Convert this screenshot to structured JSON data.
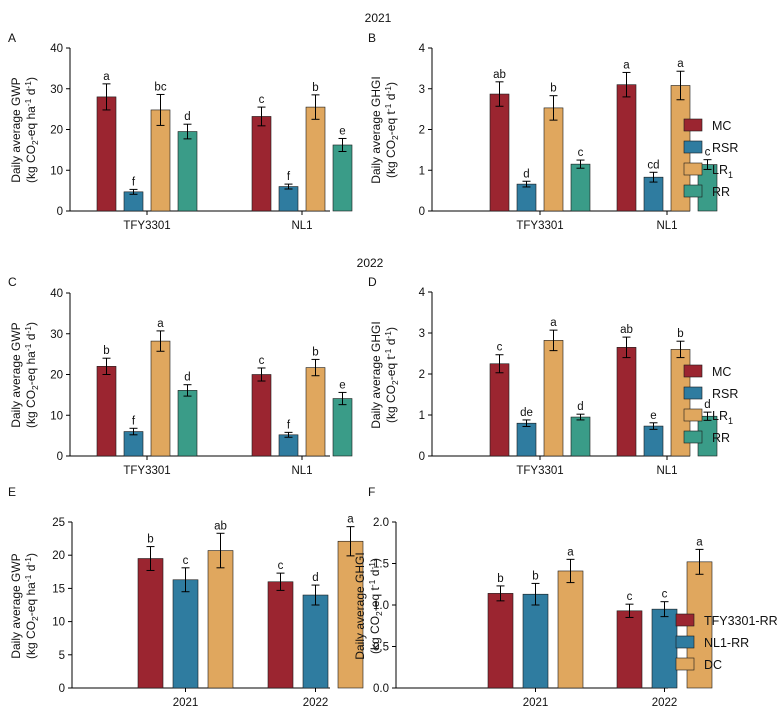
{
  "titles": {
    "year_2021": "2021",
    "year_2022": "2022"
  },
  "colors": {
    "MC": "#9b2530",
    "RSR": "#2f7ca0",
    "LR1": "#e0a75e",
    "RR": "#3a9c88"
  },
  "legend_top": [
    {
      "key": "MC",
      "label": "MC",
      "sub": ""
    },
    {
      "key": "RSR",
      "label": "RSR",
      "sub": ""
    },
    {
      "key": "LR1",
      "label": "LR",
      "sub": "1"
    },
    {
      "key": "RR",
      "label": "RR",
      "sub": ""
    }
  ],
  "legend_bottom": [
    {
      "key": "MC",
      "label": "TFY3301-RR",
      "sub": ""
    },
    {
      "key": "RSR",
      "label": "NL1-RR",
      "sub": ""
    },
    {
      "key": "LR1",
      "label": "DC",
      "sub": ""
    }
  ],
  "ylabels": {
    "gwp": {
      "l1": "Daily average GWP",
      "l2_a": "(kg CO",
      "l2_b": "2",
      "l2_c": "-eq ha",
      "l2_d": "-1",
      "l2_e": " d",
      "l2_f": "-1",
      "l2_g": ")"
    },
    "ghgi": {
      "l1": "Daily average GHGI",
      "l2_a": "(kg CO",
      "l2_b": "2",
      "l2_c": "-eq t",
      "l2_d": "-1",
      "l2_e": " d",
      "l2_f": "-1",
      "l2_g": ")"
    }
  },
  "chart_data": [
    {
      "panel": "A",
      "type": "bar",
      "title": "2021",
      "ylabel": "Daily average GWP (kg CO2-eq ha-1 d-1)",
      "ylim": [
        0,
        40
      ],
      "yticks": [
        0,
        10,
        20,
        30,
        40
      ],
      "categories": [
        "TFY3301",
        "NL1"
      ],
      "series": [
        {
          "name": "MC",
          "values": [
            28,
            23.2
          ],
          "err": [
            3.2,
            2.3
          ],
          "letters": [
            "a",
            "c"
          ]
        },
        {
          "name": "RSR",
          "values": [
            4.7,
            6
          ],
          "err": [
            0.6,
            0.6
          ],
          "letters": [
            "f",
            "f"
          ]
        },
        {
          "name": "LR1",
          "values": [
            24.8,
            25.5
          ],
          "err": [
            3.8,
            3.0
          ],
          "letters": [
            "bc",
            "b"
          ]
        },
        {
          "name": "RR",
          "values": [
            19.5,
            16.2
          ],
          "err": [
            1.8,
            1.6
          ],
          "letters": [
            "d",
            "e"
          ]
        }
      ]
    },
    {
      "panel": "B",
      "type": "bar",
      "title": "2021",
      "ylabel": "Daily average GHGI (kg CO2-eq t-1 d-1)",
      "ylim": [
        0,
        4
      ],
      "yticks": [
        0,
        1,
        2,
        3,
        4
      ],
      "categories": [
        "TFY3301",
        "NL1"
      ],
      "series": [
        {
          "name": "MC",
          "values": [
            2.87,
            3.1
          ],
          "err": [
            0.3,
            0.3
          ],
          "letters": [
            "ab",
            "a"
          ]
        },
        {
          "name": "RSR",
          "values": [
            0.66,
            0.83
          ],
          "err": [
            0.07,
            0.12
          ],
          "letters": [
            "d",
            "cd"
          ]
        },
        {
          "name": "LR1",
          "values": [
            2.53,
            3.08
          ],
          "err": [
            0.3,
            0.35
          ],
          "letters": [
            "b",
            "a"
          ]
        },
        {
          "name": "RR",
          "values": [
            1.15,
            1.14
          ],
          "err": [
            0.1,
            0.12
          ],
          "letters": [
            "c",
            "c"
          ]
        }
      ]
    },
    {
      "panel": "C",
      "type": "bar",
      "title": "2022",
      "ylabel": "Daily average GWP (kg CO2-eq ha-1 d-1)",
      "ylim": [
        0,
        40
      ],
      "yticks": [
        0,
        10,
        20,
        30,
        40
      ],
      "categories": [
        "TFY3301",
        "NL1"
      ],
      "series": [
        {
          "name": "MC",
          "values": [
            22,
            20
          ],
          "err": [
            2.0,
            1.6
          ],
          "letters": [
            "b",
            "c"
          ]
        },
        {
          "name": "RSR",
          "values": [
            6,
            5.2
          ],
          "err": [
            0.8,
            0.6
          ],
          "letters": [
            "f",
            "f"
          ]
        },
        {
          "name": "LR1",
          "values": [
            28.2,
            21.7
          ],
          "err": [
            2.5,
            2.0
          ],
          "letters": [
            "a",
            "b"
          ]
        },
        {
          "name": "RR",
          "values": [
            16.1,
            14.1
          ],
          "err": [
            1.4,
            1.5
          ],
          "letters": [
            "d",
            "e"
          ]
        }
      ]
    },
    {
      "panel": "D",
      "type": "bar",
      "title": "2022",
      "ylabel": "Daily average GHGI (kg CO2-eq t-1 d-1)",
      "ylim": [
        0,
        4
      ],
      "yticks": [
        0,
        1,
        2,
        3,
        4
      ],
      "categories": [
        "TFY3301",
        "NL1"
      ],
      "series": [
        {
          "name": "MC",
          "values": [
            2.25,
            2.65
          ],
          "err": [
            0.22,
            0.25
          ],
          "letters": [
            "c",
            "ab"
          ]
        },
        {
          "name": "RSR",
          "values": [
            0.8,
            0.73
          ],
          "err": [
            0.08,
            0.08
          ],
          "letters": [
            "de",
            "e"
          ]
        },
        {
          "name": "LR1",
          "values": [
            2.82,
            2.6
          ],
          "err": [
            0.25,
            0.2
          ],
          "letters": [
            "a",
            "b"
          ]
        },
        {
          "name": "RR",
          "values": [
            0.95,
            0.97
          ],
          "err": [
            0.07,
            0.1
          ],
          "letters": [
            "d",
            "d"
          ]
        }
      ]
    },
    {
      "panel": "E",
      "type": "bar",
      "title": "",
      "ylabel": "Daily average GWP (kg CO2-eq ha-1 d-1)",
      "ylim": [
        0,
        25
      ],
      "yticks": [
        0,
        5,
        10,
        15,
        20,
        25
      ],
      "categories": [
        "2021",
        "2022"
      ],
      "series": [
        {
          "name": "TFY3301-RR",
          "values": [
            19.5,
            16
          ],
          "err": [
            1.8,
            1.3
          ],
          "letters": [
            "b",
            "c"
          ]
        },
        {
          "name": "NL1-RR",
          "values": [
            16.3,
            14
          ],
          "err": [
            1.8,
            1.5
          ],
          "letters": [
            "c",
            "d"
          ]
        },
        {
          "name": "DC",
          "values": [
            20.7,
            22.1
          ],
          "err": [
            2.6,
            2.2
          ],
          "letters": [
            "ab",
            "a"
          ]
        }
      ]
    },
    {
      "panel": "F",
      "type": "bar",
      "title": "",
      "ylabel": "Daily average GHGI (kg CO2-eq t-1 d-1)",
      "ylim": [
        0,
        2
      ],
      "yticks": [
        "0.0",
        "0.5",
        "1.0",
        "1.5",
        "2.0"
      ],
      "categories": [
        "2021",
        "2022"
      ],
      "series": [
        {
          "name": "TFY3301-RR",
          "values": [
            1.14,
            0.93
          ],
          "err": [
            0.09,
            0.08
          ],
          "letters": [
            "b",
            "c"
          ]
        },
        {
          "name": "NL1-RR",
          "values": [
            1.13,
            0.95
          ],
          "err": [
            0.13,
            0.09
          ],
          "letters": [
            "b",
            "c"
          ]
        },
        {
          "name": "DC",
          "values": [
            1.41,
            1.52
          ],
          "err": [
            0.14,
            0.15
          ],
          "letters": [
            "a",
            "a"
          ]
        }
      ]
    }
  ]
}
